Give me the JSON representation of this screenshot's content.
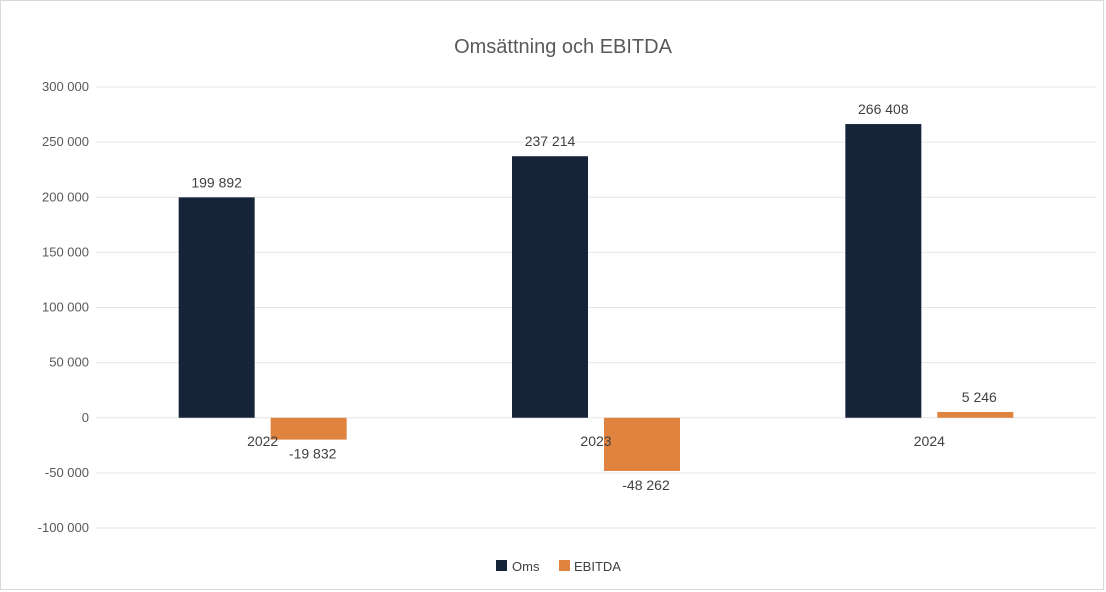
{
  "chart_data": {
    "type": "bar",
    "title": "Omsättning och EBITDA",
    "xlabel": "",
    "ylabel": "",
    "categories": [
      "2022",
      "2023",
      "2024"
    ],
    "series": [
      {
        "name": "Oms",
        "values": [
          199892,
          237214,
          266408
        ],
        "labels": [
          "199 892",
          "237 214",
          "266 408"
        ]
      },
      {
        "name": "EBITDA",
        "values": [
          -19832,
          -48262,
          5246
        ],
        "labels": [
          "-19 832",
          "-48 262",
          "5 246"
        ]
      }
    ],
    "ylim": [
      -100000,
      300000
    ],
    "yticks": [
      300000,
      250000,
      200000,
      150000,
      100000,
      50000,
      0,
      -50000,
      -100000
    ],
    "ytick_labels": [
      "300 000",
      "250 000",
      "200 000",
      "150 000",
      "100 000",
      "50 000",
      "0",
      "-50 000",
      "-100 000"
    ],
    "grid": true,
    "legend_position": "bottom",
    "colors": {
      "Oms": "#16243a",
      "EBITDA": "#e0833e",
      "grid": "#e6e6e6"
    }
  }
}
